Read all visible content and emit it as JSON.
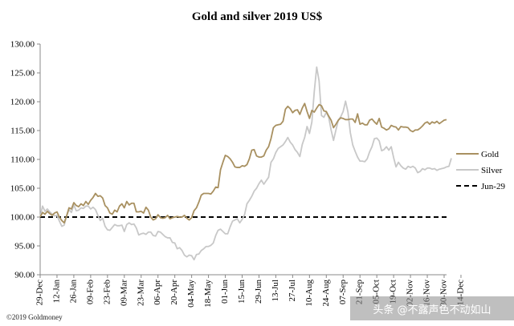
{
  "chart_data": {
    "type": "line",
    "title": "Gold and silver 2019  US$",
    "xlabel": "",
    "ylabel": "",
    "ylim": [
      90,
      130
    ],
    "yticks": [
      "90.00",
      "95.00",
      "100.00",
      "105.00",
      "110.00",
      "115.00",
      "120.00",
      "125.00",
      "130.00"
    ],
    "xticks": [
      "29-Dec",
      "12-Jan",
      "26-Jan",
      "09-Feb",
      "23-Feb",
      "09-Mar",
      "23-Mar",
      "06-Apr",
      "20-Apr",
      "04-May",
      "18-May",
      "01-Jun",
      "15-Jun",
      "29-Jun",
      "13-Jul",
      "27-Jul",
      "10-Aug",
      "24-Aug",
      "07-Sep",
      "21-Sep",
      "05-Oct",
      "19-Oct",
      "02-Nov",
      "16-Nov",
      "30-Nov",
      "14-Dec"
    ],
    "x_unit": "days from 29-Dec (2-day steps)",
    "grid": false,
    "legend_position": "right",
    "reference_line": {
      "label": "Jun-29",
      "value": 100,
      "style": "dashed",
      "color": "#000000"
    },
    "series": [
      {
        "name": "Gold",
        "color": "#A89060",
        "x_step_days": 2,
        "values": [
          100.0,
          100.8,
          100.5,
          101.0,
          100.6,
          100.3,
          100.7,
          100.9,
          100.0,
          99.4,
          99.0,
          100.2,
          101.6,
          101.4,
          102.5,
          102.0,
          101.8,
          102.3,
          102.0,
          102.7,
          102.2,
          102.9,
          103.4,
          104.1,
          103.6,
          103.7,
          103.3,
          102.0,
          101.6,
          100.7,
          100.5,
          101.2,
          100.9,
          101.9,
          102.3,
          101.6,
          102.7,
          102.1,
          102.4,
          102.4,
          100.9,
          100.9,
          101.0,
          100.7,
          101.7,
          101.2,
          100.0,
          99.5,
          99.7,
          100.4,
          99.9,
          99.8,
          99.9,
          100.3,
          99.7,
          99.9,
          100.0,
          100.1,
          100.0,
          100.0,
          100.3,
          99.8,
          99.5,
          99.9,
          101.1,
          101.6,
          102.6,
          103.8,
          104.1,
          104.1,
          104.1,
          104.0,
          104.5,
          105.2,
          105.1,
          108.2,
          109.5,
          110.7,
          110.5,
          110.1,
          109.5,
          108.7,
          108.6,
          108.6,
          108.9,
          108.8,
          109.1,
          110.1,
          111.6,
          111.7,
          110.6,
          110.4,
          110.4,
          110.6,
          111.6,
          112.2,
          113.6,
          115.5,
          115.9,
          116.0,
          116.1,
          116.6,
          118.7,
          119.2,
          118.8,
          118.1,
          118.5,
          118.6,
          117.8,
          118.9,
          119.7,
          118.3,
          117.1,
          118.5,
          118.2,
          118.9,
          119.5,
          119.3,
          118.4,
          118.3,
          117.5,
          116.8,
          115.5,
          116.1,
          116.8,
          117.2,
          117.1,
          116.9,
          116.9,
          117.0,
          117.0,
          116.4,
          117.9,
          116.1,
          116.3,
          116.0,
          116.0,
          116.8,
          117.0,
          116.5,
          116.1,
          117.1,
          115.6,
          115.4,
          115.1,
          115.3,
          115.9,
          115.7,
          115.6,
          115.1,
          115.7,
          115.6,
          115.6,
          115.5,
          115.0,
          114.8,
          115.1,
          115.1,
          115.4,
          115.8,
          116.3,
          116.5,
          116.1,
          116.5,
          116.3,
          116.6,
          116.2,
          116.5,
          116.8,
          116.9
        ]
      },
      {
        "name": "Silver",
        "color": "#C8C8C8",
        "x_step_days": 2,
        "values": [
          100.0,
          101.9,
          101.0,
          101.4,
          100.9,
          100.5,
          100.2,
          100.3,
          99.3,
          98.4,
          98.6,
          100.2,
          101.3,
          100.8,
          102.1,
          101.1,
          101.2,
          101.6,
          101.5,
          101.9,
          101.9,
          101.4,
          101.7,
          101.3,
          100.3,
          99.4,
          99.8,
          98.4,
          97.8,
          97.7,
          98.2,
          98.7,
          98.5,
          98.5,
          98.6,
          97.5,
          98.7,
          99.0,
          98.7,
          98.8,
          98.1,
          96.9,
          97.1,
          97.2,
          97.0,
          97.4,
          97.4,
          96.8,
          96.7,
          97.5,
          97.4,
          97.0,
          96.6,
          96.4,
          96.4,
          95.6,
          95.5,
          94.5,
          94.7,
          94.2,
          93.4,
          93.1,
          93.4,
          93.3,
          92.6,
          93.5,
          93.6,
          94.2,
          94.5,
          94.9,
          94.9,
          95.1,
          95.5,
          96.8,
          97.7,
          97.9,
          97.5,
          97.1,
          97.1,
          98.3,
          99.3,
          99.5,
          99.7,
          99.0,
          99.6,
          100.4,
          102.3,
          102.9,
          103.6,
          104.5,
          105.0,
          105.8,
          106.4,
          105.7,
          106.3,
          106.9,
          109.5,
          110.1,
          111.2,
          111.9,
          112.2,
          112.5,
          113.1,
          113.8,
          113.0,
          112.5,
          111.7,
          111.2,
          110.5,
          112.6,
          113.8,
          115.7,
          114.5,
          116.5,
          121.8,
          126.0,
          123.6,
          117.6,
          117.3,
          118.2,
          117.3,
          115.1,
          113.3,
          115.1,
          116.8,
          117.4,
          118.3,
          120.1,
          118.2,
          114.6,
          112.5,
          111.4,
          110.4,
          109.7,
          109.7,
          109.6,
          110.1,
          111.3,
          112.2,
          113.6,
          113.7,
          113.2,
          111.5,
          111.7,
          112.2,
          111.6,
          112.2,
          110.3,
          108.7,
          109.5,
          108.9,
          108.5,
          108.3,
          108.8,
          108.6,
          108.8,
          108.5,
          107.7,
          107.9,
          108.4,
          108.2,
          108.5,
          108.5,
          108.3,
          108.4,
          108.1,
          108.3,
          108.4,
          108.5,
          108.7,
          108.8,
          110.2
        ]
      }
    ]
  },
  "footer": {
    "copyright": "©2019 Goldmoney",
    "watermark": "头条 @不露声色不动如山"
  }
}
